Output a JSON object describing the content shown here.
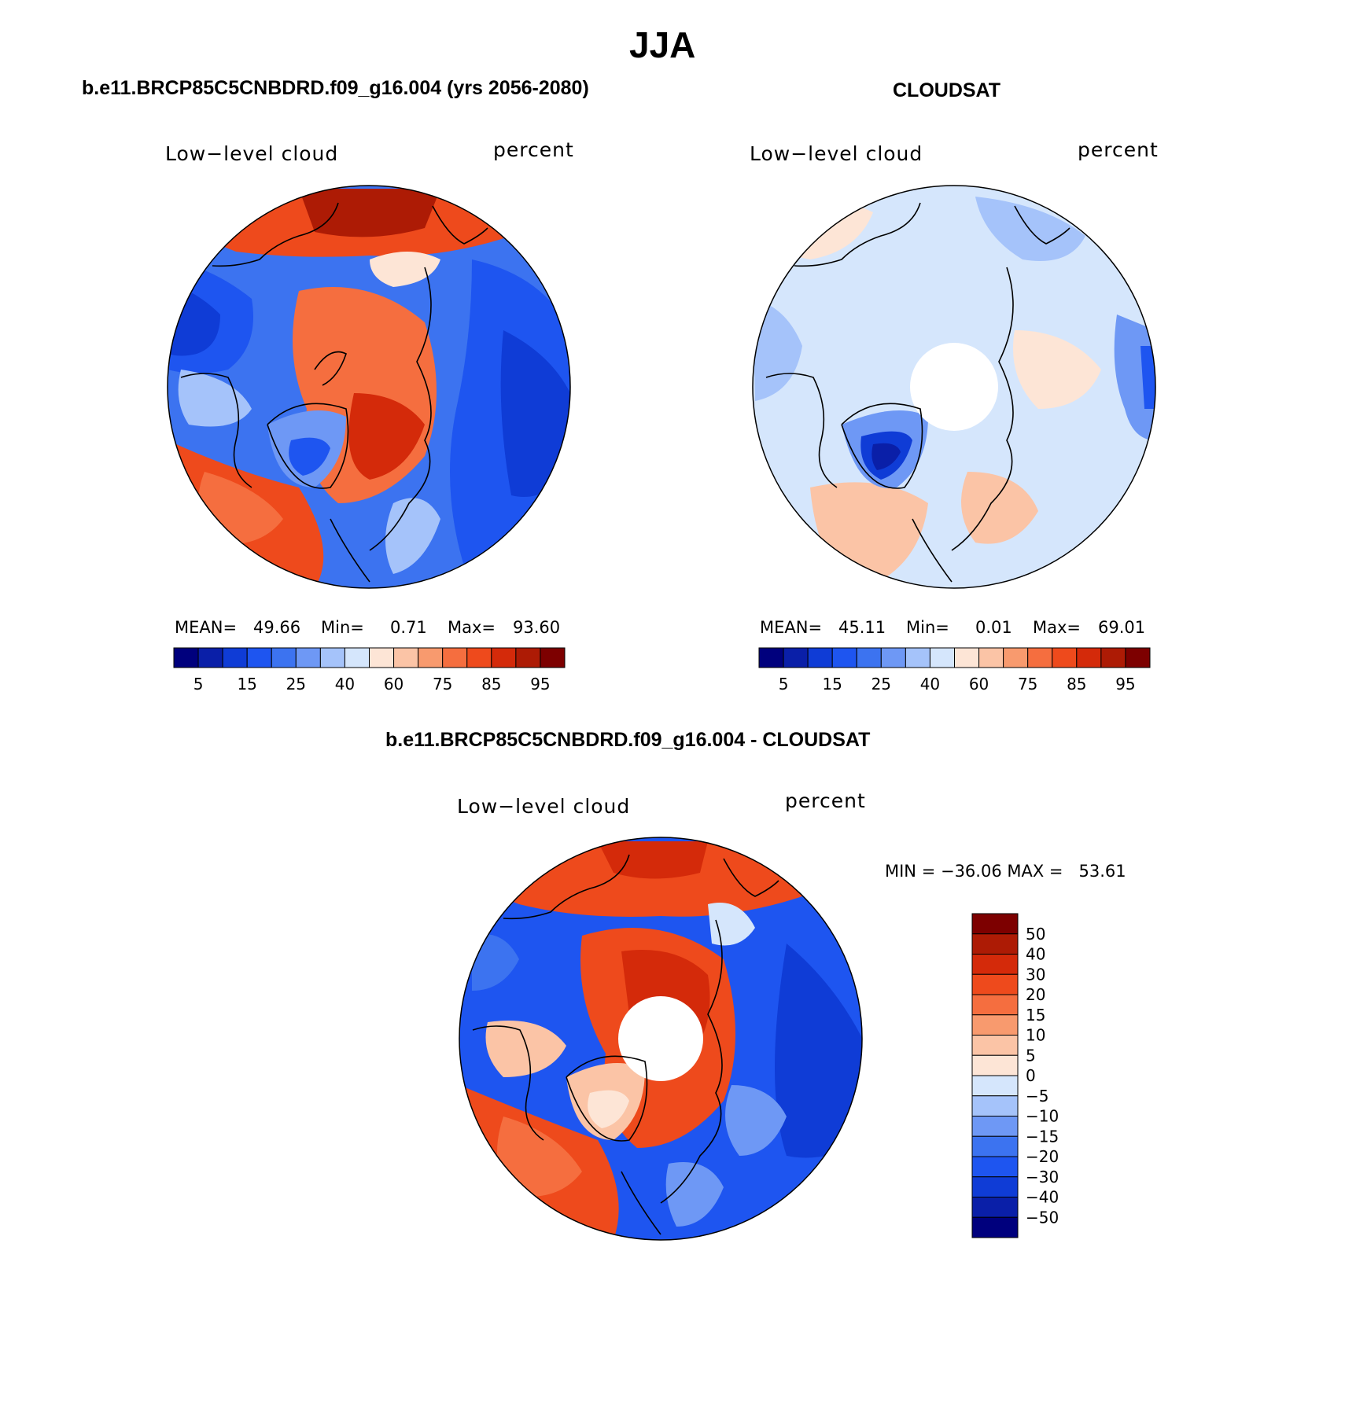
{
  "figure": {
    "season": "JJA",
    "panels": [
      {
        "title": "b.e11.BRCP85C5CNBDRD.f09_g16.004 (yrs 2056-2080)",
        "variable": "Low−level cloud",
        "units": "percent",
        "stats": {
          "mean_label": "MEAN=",
          "mean": "49.66",
          "min_label": "Min=",
          "min": "0.71",
          "max_label": "Max=",
          "max": "93.60"
        }
      },
      {
        "title": "CLOUDSAT",
        "variable": "Low−level cloud",
        "units": "percent",
        "stats": {
          "mean_label": "MEAN=",
          "mean": "45.11",
          "min_label": "Min=",
          "min": "0.01",
          "max_label": "Max=",
          "max": "69.01"
        }
      },
      {
        "title": "b.e11.BRCP85C5CNBDRD.f09_g16.004 - CLOUDSAT",
        "variable": "Low−level cloud",
        "units": "percent",
        "stats": {
          "text": "MIN = −36.06 MAX =   53.61"
        }
      }
    ],
    "colorbar_abs": {
      "tick_labels": [
        "5",
        "15",
        "25",
        "40",
        "60",
        "75",
        "85",
        "95"
      ],
      "colors": [
        "#00007d",
        "#0a1fa8",
        "#0f3cd6",
        "#1e55f0",
        "#3c73f0",
        "#6e98f5",
        "#a5c3fa",
        "#d5e6fc",
        "#fde5d6",
        "#fbc4a6",
        "#f89a6e",
        "#f56e3f",
        "#ee4a1c",
        "#d42a0a",
        "#ad1b05",
        "#7d0000"
      ]
    },
    "colorbar_diff": {
      "tick_labels": [
        "50",
        "40",
        "30",
        "20",
        "15",
        "10",
        "5",
        "0",
        "−5",
        "−10",
        "−15",
        "−20",
        "−30",
        "−40",
        "−50"
      ],
      "colors": [
        "#7d0000",
        "#ad1b05",
        "#d42a0a",
        "#ee4a1c",
        "#f56e3f",
        "#f89a6e",
        "#fbc4a6",
        "#fde5d6",
        "#d5e6fc",
        "#a5c3fa",
        "#6e98f5",
        "#3c73f0",
        "#1e55f0",
        "#0f3cd6",
        "#0a1fa8",
        "#00007d"
      ]
    }
  }
}
